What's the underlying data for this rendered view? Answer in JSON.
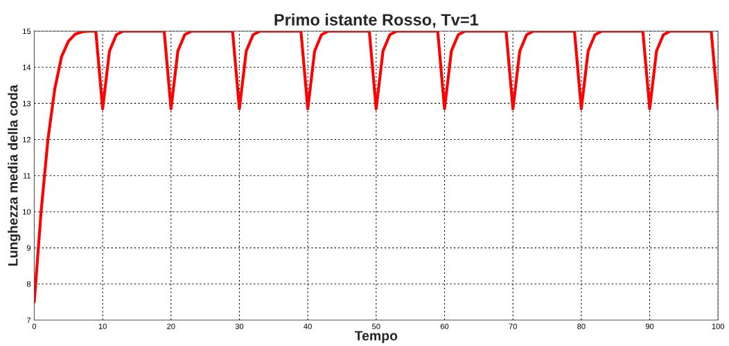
{
  "chart_data": {
    "type": "line",
    "title": "Primo istante Rosso, Tv=1",
    "xlabel": "Tempo",
    "ylabel": "Lunghezza media della coda",
    "x": [
      0,
      1,
      2,
      3,
      4,
      5,
      6,
      7,
      8,
      9,
      10,
      11,
      12,
      13,
      19,
      20,
      21,
      22,
      23,
      29,
      30,
      31,
      32,
      33,
      39,
      40,
      41,
      42,
      43,
      49,
      50,
      51,
      52,
      53,
      59,
      60,
      61,
      62,
      63,
      69,
      70,
      71,
      72,
      73,
      79,
      80,
      81,
      82,
      83,
      89,
      90,
      91,
      92,
      93,
      99,
      100
    ],
    "series": [
      {
        "color": "#ff0000",
        "values": [
          7.5,
          10.0,
          12.0,
          13.4,
          14.3,
          14.72,
          14.92,
          14.98,
          15,
          15,
          12.85,
          14.45,
          14.9,
          15,
          15,
          12.85,
          14.45,
          14.9,
          15,
          15,
          12.85,
          14.45,
          14.9,
          15,
          15,
          12.85,
          14.45,
          14.9,
          15,
          15,
          12.85,
          14.45,
          14.9,
          15,
          15,
          12.85,
          14.45,
          14.9,
          15,
          15,
          12.85,
          14.45,
          14.9,
          15,
          15,
          12.85,
          14.45,
          14.9,
          15,
          15,
          12.85,
          14.45,
          14.9,
          15,
          15,
          12.85
        ]
      }
    ],
    "xlim": [
      0,
      100
    ],
    "ylim": [
      7,
      15
    ],
    "xticks": [
      0,
      10,
      20,
      30,
      40,
      50,
      60,
      70,
      80,
      90,
      100
    ],
    "yticks": [
      7,
      8,
      9,
      10,
      11,
      12,
      13,
      14,
      15
    ],
    "grid": true,
    "line_style": "solid",
    "marker": "none",
    "legend": false
  }
}
